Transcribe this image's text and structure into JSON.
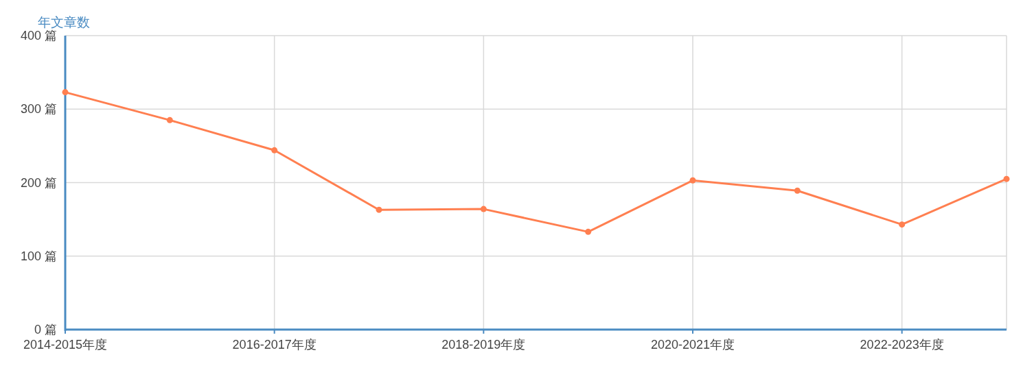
{
  "chart_data": {
    "type": "line",
    "ylabel": "年文章数",
    "categories": [
      "2014-2015年度",
      null,
      "2016-2017年度",
      null,
      "2018-2019年度",
      null,
      "2020-2021年度",
      null,
      "2022-2023年度",
      null
    ],
    "series": [
      {
        "color": "#ff7f50",
        "values": [
          323,
          285,
          244,
          163,
          164,
          133,
          203,
          189,
          143,
          205
        ]
      }
    ],
    "ylim": [
      0,
      400
    ],
    "yticks": [
      {
        "value": 0,
        "label": "0 篇"
      },
      {
        "value": 100,
        "label": "100 篇"
      },
      {
        "value": 200,
        "label": "200 篇"
      },
      {
        "value": 300,
        "label": "300 篇"
      },
      {
        "value": 400,
        "label": "400 篇"
      }
    ],
    "grid": true,
    "marker": "circle",
    "line_style": "solid"
  }
}
